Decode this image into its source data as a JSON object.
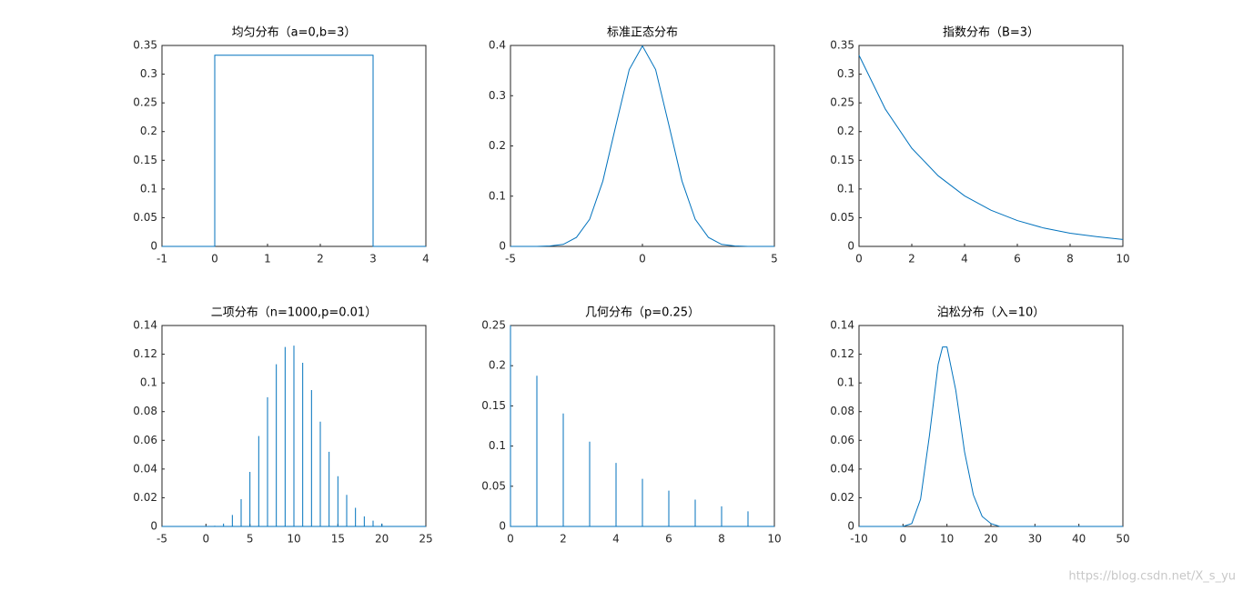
{
  "chart_data": [
    {
      "type": "line",
      "title": "均匀分布（a=0,b=3）",
      "color": "#0072bd",
      "x": [
        -1,
        0,
        0,
        3,
        3,
        4
      ],
      "values": [
        0,
        0,
        0.333,
        0.333,
        0,
        0
      ],
      "xlim": [
        -1,
        4
      ],
      "ylim": [
        0,
        0.35
      ],
      "xticks": [
        -1,
        0,
        1,
        2,
        3,
        4
      ],
      "yticks": [
        0,
        0.05,
        0.1,
        0.15,
        0.2,
        0.25,
        0.3,
        0.35
      ]
    },
    {
      "type": "line",
      "title": "标准正态分布",
      "color": "#0072bd",
      "x": [
        -5,
        -4.5,
        -4,
        -3.5,
        -3,
        -2.5,
        -2,
        -1.5,
        -1,
        -0.5,
        0,
        0.5,
        1,
        1.5,
        2,
        2.5,
        3,
        3.5,
        4,
        4.5,
        5
      ],
      "values": [
        0,
        0,
        0,
        0.001,
        0.004,
        0.018,
        0.054,
        0.13,
        0.242,
        0.352,
        0.399,
        0.352,
        0.242,
        0.13,
        0.054,
        0.018,
        0.004,
        0.001,
        0,
        0,
        0
      ],
      "xlim": [
        -5,
        5
      ],
      "ylim": [
        0,
        0.4
      ],
      "xticks": [
        -5,
        0,
        5
      ],
      "yticks": [
        0,
        0.1,
        0.2,
        0.3,
        0.4
      ]
    },
    {
      "type": "line",
      "title": "指数分布（B=3）",
      "color": "#0072bd",
      "x": [
        0,
        1,
        2,
        3,
        4,
        5,
        6,
        7,
        8,
        9,
        10
      ],
      "values": [
        0.333,
        0.239,
        0.171,
        0.123,
        0.088,
        0.063,
        0.045,
        0.032,
        0.023,
        0.017,
        0.012
      ],
      "xlim": [
        0,
        10
      ],
      "ylim": [
        0,
        0.35
      ],
      "xticks": [
        0,
        2,
        4,
        6,
        8,
        10
      ],
      "yticks": [
        0,
        0.05,
        0.1,
        0.15,
        0.2,
        0.25,
        0.3,
        0.35
      ]
    },
    {
      "type": "stem",
      "title": "二项分布（n=1000,p=0.01）",
      "color": "#0072bd",
      "x": [
        0,
        1,
        2,
        3,
        4,
        5,
        6,
        7,
        8,
        9,
        10,
        11,
        12,
        13,
        14,
        15,
        16,
        17,
        18,
        19,
        20
      ],
      "values": [
        0,
        0.0005,
        0.002,
        0.008,
        0.019,
        0.038,
        0.063,
        0.09,
        0.113,
        0.125,
        0.126,
        0.114,
        0.095,
        0.073,
        0.052,
        0.035,
        0.022,
        0.013,
        0.007,
        0.004,
        0.002
      ],
      "xlim": [
        -5,
        25
      ],
      "ylim": [
        0,
        0.14
      ],
      "xticks": [
        -5,
        0,
        5,
        10,
        15,
        20,
        25
      ],
      "yticks": [
        0,
        0.02,
        0.04,
        0.06,
        0.08,
        0.1,
        0.12,
        0.14
      ]
    },
    {
      "type": "stem",
      "title": "几何分布（p=0.25）",
      "color": "#0072bd",
      "x": [
        0,
        1,
        2,
        3,
        4,
        5,
        6,
        7,
        8,
        9
      ],
      "values": [
        0.25,
        0.1875,
        0.1406,
        0.1055,
        0.0791,
        0.0593,
        0.0445,
        0.0334,
        0.025,
        0.0188
      ],
      "xlim": [
        0,
        10
      ],
      "ylim": [
        0,
        0.25
      ],
      "xticks": [
        0,
        2,
        4,
        6,
        8,
        10
      ],
      "yticks": [
        0,
        0.05,
        0.1,
        0.15,
        0.2,
        0.25
      ]
    },
    {
      "type": "line",
      "title": "泊松分布（入=10）",
      "color": "#0072bd",
      "x": [
        -10,
        0,
        2,
        4,
        6,
        8,
        9,
        10,
        12,
        14,
        16,
        18,
        20,
        22,
        30,
        50
      ],
      "values": [
        0,
        0,
        0.002,
        0.019,
        0.063,
        0.113,
        0.125,
        0.125,
        0.095,
        0.052,
        0.022,
        0.007,
        0.002,
        0,
        0,
        0
      ],
      "xlim": [
        -10,
        50
      ],
      "ylim": [
        0,
        0.14
      ],
      "xticks": [
        -10,
        0,
        10,
        20,
        30,
        40,
        50
      ],
      "yticks": [
        0,
        0.02,
        0.04,
        0.06,
        0.08,
        0.1,
        0.12,
        0.14
      ]
    }
  ],
  "watermark": "https://blog.csdn.net/X_s_yu"
}
